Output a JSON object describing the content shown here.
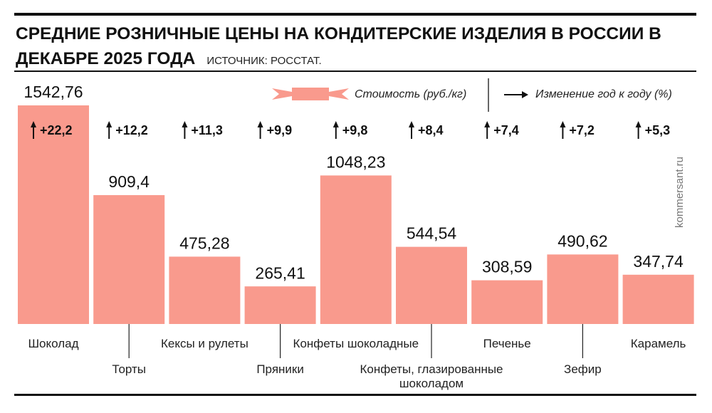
{
  "chart_data": {
    "type": "bar",
    "title": "СРЕДНИЕ РОЗНИЧНЫЕ ЦЕНЫ НА КОНДИТЕРСКИЕ ИЗДЕЛИЯ В РОССИИ В ДЕКАБРЕ 2025 ГОДА",
    "source": "ИСТОЧНИК: РОССТАТ.",
    "watermark": "kommersant.ru",
    "categories": [
      "Шоколад",
      "Торты",
      "Кексы и рулеты",
      "Пряники",
      "Конфеты шоколадные",
      "Конфеты, глазированные\nшоколадом",
      "Печенье",
      "Зефир",
      "Карамель"
    ],
    "series": [
      {
        "name": "Стоимость (руб./кг)",
        "color": "#f99a8d",
        "values": [
          1542.76,
          909.4,
          475.28,
          265.41,
          1048.23,
          544.54,
          308.59,
          490.62,
          347.74
        ],
        "value_labels": [
          "1542,76",
          "909,4",
          "475,28",
          "265,41",
          "1048,23",
          "544,54",
          "308,59",
          "490,62",
          "347,74"
        ]
      },
      {
        "name": "Изменение год к году (%)",
        "values": [
          22.2,
          12.2,
          11.3,
          9.9,
          9.8,
          8.4,
          7.4,
          7.2,
          5.3
        ],
        "value_labels": [
          "+22,2",
          "+12,2",
          "+11,3",
          "+9,9",
          "+9,8",
          "+8,4",
          "+7,4",
          "+7,2",
          "+5,3"
        ]
      }
    ]
  }
}
